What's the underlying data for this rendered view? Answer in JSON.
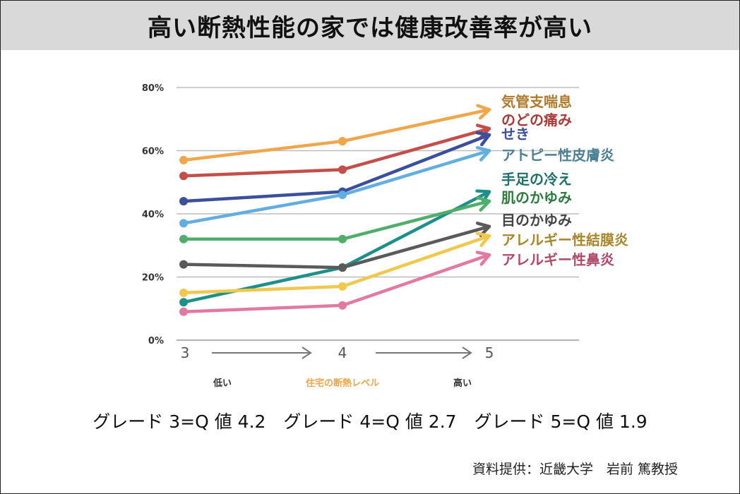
{
  "title": "高い断熱性能の家では健康改善率が高い",
  "chart_data": {
    "type": "line",
    "x": [
      3,
      4,
      5
    ],
    "ylim": [
      0,
      80
    ],
    "yticks": [
      "0%",
      "20%",
      "40%",
      "60%",
      "80%"
    ],
    "grid": true,
    "x_axis_labels": {
      "low": "低い",
      "mid": "住宅の断熱レベル",
      "high": "高い"
    },
    "series": [
      {
        "name": "気管支喘息",
        "color": "#f0a64a",
        "text_color": "#b07a2a",
        "values": [
          57,
          63,
          73
        ]
      },
      {
        "name": "のどの痛み",
        "color": "#c34e4a",
        "text_color": "#a63a36",
        "values": [
          52,
          54,
          67
        ]
      },
      {
        "name": "せき",
        "color": "#3b4f9c",
        "text_color": "#3b4f9c",
        "values": [
          44,
          47,
          65
        ]
      },
      {
        "name": "アトピー性皮膚炎",
        "color": "#62aee0",
        "text_color": "#4d7f96",
        "values": [
          37,
          46,
          60
        ]
      },
      {
        "name": "手足の冷え",
        "color": "#1f8f8a",
        "text_color": "#1f6f6a",
        "values": [
          12,
          23,
          47
        ]
      },
      {
        "name": "肌のかゆみ",
        "color": "#4faf6a",
        "text_color": "#2e7a3e",
        "values": [
          32,
          32,
          44
        ]
      },
      {
        "name": "目のかゆみ",
        "color": "#5a5a5a",
        "text_color": "#444444",
        "values": [
          24,
          23,
          36
        ]
      },
      {
        "name": "アレルギー性結膜炎",
        "color": "#f1c84e",
        "text_color": "#a8862c",
        "values": [
          15,
          17,
          33
        ]
      },
      {
        "name": "アレルギー性鼻炎",
        "color": "#e27aa0",
        "text_color": "#b24a6a",
        "values": [
          9,
          11,
          27
        ]
      }
    ]
  },
  "footer": {
    "grade_line": "グレード 3=Q 値 4.2　グレード 4=Q 値 2.7　グレード 5=Q 値 1.9",
    "credit": "資料提供：近畿大学　岩前 篤教授"
  }
}
